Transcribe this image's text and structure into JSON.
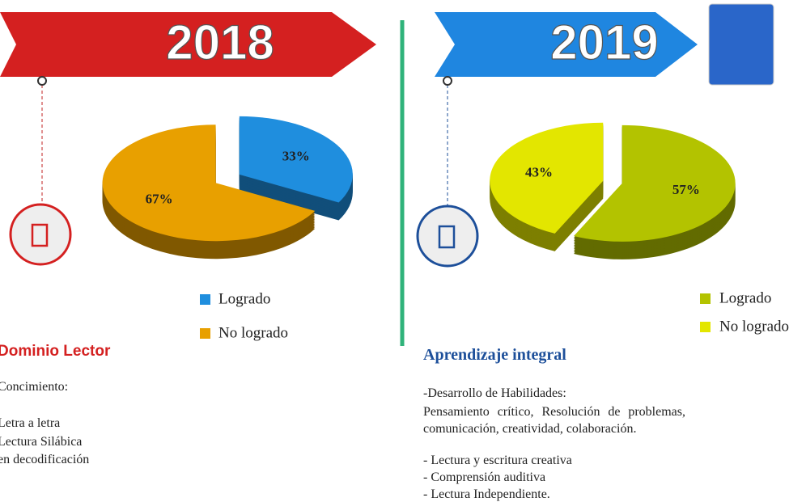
{
  "chart_data": [
    {
      "type": "pie",
      "title": "2018",
      "categories": [
        "Logrado",
        "No logrado"
      ],
      "values": [
        33,
        67
      ],
      "value_labels": [
        "33%",
        "67%"
      ],
      "colors": [
        "#1f8ede",
        "#e8a000"
      ]
    },
    {
      "type": "pie",
      "title": "2019",
      "categories": [
        "Logrado",
        "No logrado"
      ],
      "values": [
        57,
        43
      ],
      "value_labels": [
        "57%",
        "43%"
      ],
      "colors": [
        "#b3c300",
        "#e3e600"
      ]
    }
  ],
  "left_text": {
    "heading": "Dominio Lector",
    "lines": [
      "Concimiento:",
      "Letra a letra",
      "Lectura Silábica",
      "en decodificación"
    ]
  },
  "right_text": {
    "heading": "Aprendizaje integral",
    "intro": "-Desarrollo de Habilidades:",
    "paragraph": "Pensamiento crítico, Resolución de problemas, comunicación, creatividad, colaboración.",
    "items": [
      "- Lectura y escritura creativa",
      "- Comprensión auditiva",
      "- Lectura Independiente."
    ]
  }
}
